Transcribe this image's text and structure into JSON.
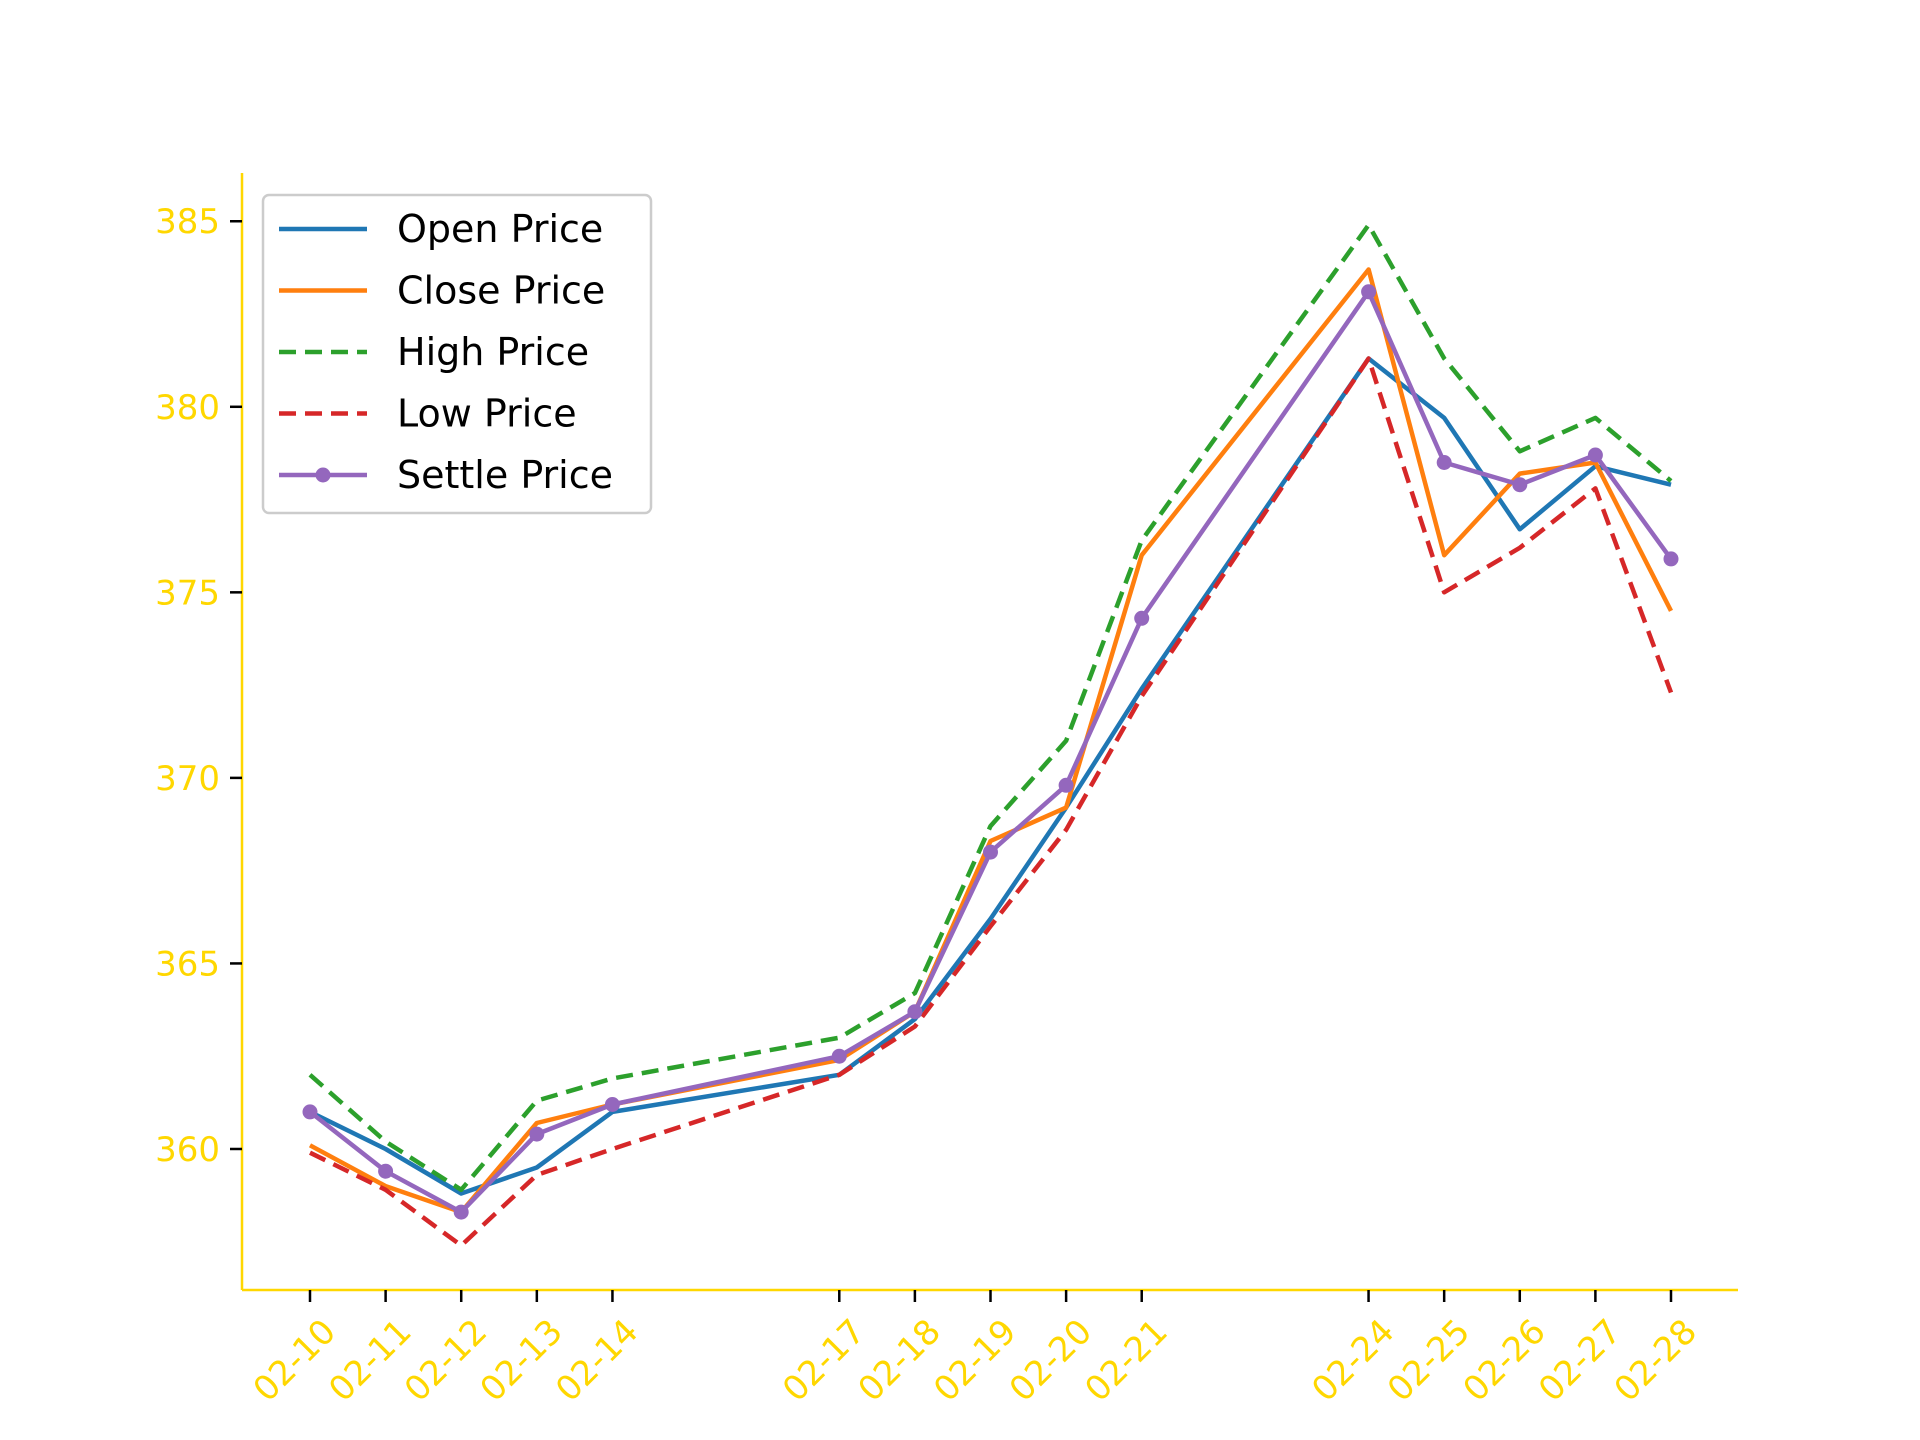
{
  "chart_data": {
    "type": "line",
    "title": "",
    "xlabel": "",
    "ylabel": "",
    "x": [
      "02-10",
      "02-11",
      "02-12",
      "02-13",
      "02-14",
      "02-17",
      "02-18",
      "02-19",
      "02-20",
      "02-21",
      "02-24",
      "02-25",
      "02-26",
      "02-27",
      "02-28"
    ],
    "x_days": [
      10,
      11,
      12,
      13,
      14,
      17,
      18,
      19,
      20,
      21,
      24,
      25,
      26,
      27,
      28
    ],
    "ylim": [
      356.2,
      386.3
    ],
    "y_ticks": [
      360,
      365,
      370,
      375,
      380,
      385
    ],
    "grid": false,
    "legend_position": "top-left",
    "axis_color": "#FFD700",
    "series": [
      {
        "name": "Open Price",
        "color": "#1f77b4",
        "style": "solid",
        "marker": false,
        "values": [
          361.0,
          360.0,
          358.8,
          359.5,
          361.0,
          362.0,
          363.5,
          366.2,
          369.2,
          372.4,
          381.3,
          379.7,
          376.7,
          378.4,
          377.9
        ]
      },
      {
        "name": "Close Price",
        "color": "#ff7f0e",
        "style": "solid",
        "marker": false,
        "values": [
          360.1,
          359.0,
          358.3,
          360.7,
          361.2,
          362.4,
          363.7,
          368.3,
          369.2,
          376.0,
          383.7,
          376.0,
          378.2,
          378.5,
          374.5
        ]
      },
      {
        "name": "High Price",
        "color": "#2ca02c",
        "style": "dashed",
        "marker": false,
        "values": [
          362.0,
          360.2,
          358.9,
          361.3,
          361.9,
          363.0,
          364.2,
          368.7,
          371.0,
          376.4,
          384.9,
          381.3,
          378.8,
          379.7,
          378.0
        ]
      },
      {
        "name": "Low Price",
        "color": "#d62728",
        "style": "dashed",
        "marker": false,
        "values": [
          359.9,
          358.9,
          357.4,
          359.3,
          360.0,
          362.0,
          363.3,
          366.0,
          368.6,
          372.2,
          381.3,
          375.0,
          376.2,
          377.8,
          372.3
        ]
      },
      {
        "name": "Settle Price",
        "color": "#9467bd",
        "style": "solid",
        "marker": true,
        "values": [
          361.0,
          359.4,
          358.3,
          360.4,
          361.2,
          362.5,
          363.7,
          368.0,
          369.8,
          374.3,
          383.1,
          378.5,
          377.9,
          378.7,
          375.9
        ]
      }
    ]
  }
}
